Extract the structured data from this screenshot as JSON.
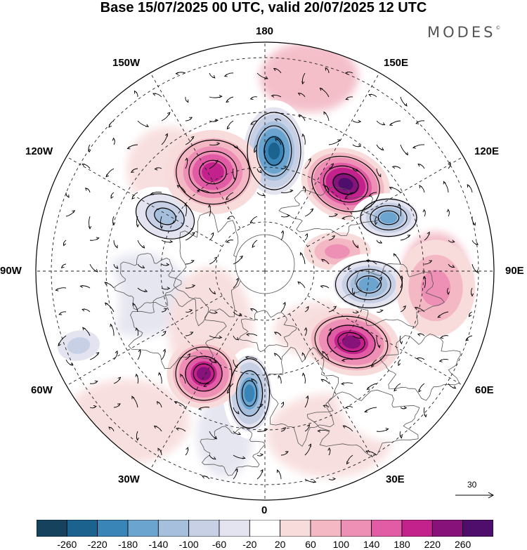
{
  "title": "Base 15/07/2025 00 UTC, valid 20/07/2025 12 UTC",
  "brand": "MODES",
  "brand_mark": "©",
  "longitude_labels": [
    {
      "id": "lon-180",
      "text": "180"
    },
    {
      "id": "lon-150e",
      "text": "150E"
    },
    {
      "id": "lon-120e",
      "text": "120E"
    },
    {
      "id": "lon-90e",
      "text": "90E"
    },
    {
      "id": "lon-60e",
      "text": "60E"
    },
    {
      "id": "lon-30e",
      "text": "30E"
    },
    {
      "id": "lon-0",
      "text": "0"
    },
    {
      "id": "lon-30w",
      "text": "30W"
    },
    {
      "id": "lon-60w",
      "text": "60W"
    },
    {
      "id": "lon-90w",
      "text": "90W"
    },
    {
      "id": "lon-120w",
      "text": "120W"
    },
    {
      "id": "lon-150w",
      "text": "150W"
    }
  ],
  "vector_scale": "30",
  "colorbar": {
    "ticks": [
      "-260",
      "-220",
      "-180",
      "-140",
      "-100",
      "-60",
      "-20",
      "20",
      "60",
      "100",
      "140",
      "180",
      "220",
      "260"
    ],
    "colors": [
      "#16425e",
      "#1c628f",
      "#3a85b8",
      "#6ba4cf",
      "#a6bfdc",
      "#c8d0e6",
      "#e4e4f0",
      "#ffffff",
      "#f8dcdc",
      "#f3b8c4",
      "#ee8fb5",
      "#e25ca5",
      "#c3218b",
      "#86127a",
      "#4f0e6b"
    ]
  },
  "anomaly_centers": [
    {
      "sign": "negative",
      "level": -220,
      "near": "180"
    },
    {
      "sign": "positive",
      "level": 220,
      "near": "150E"
    },
    {
      "sign": "negative",
      "level": -140,
      "near": "120E"
    },
    {
      "sign": "positive",
      "level": 60,
      "near": "90E"
    },
    {
      "sign": "negative",
      "level": -140,
      "near": "90E"
    },
    {
      "sign": "positive",
      "level": 180,
      "near": "60E"
    },
    {
      "sign": "negative",
      "level": -180,
      "near": "0"
    },
    {
      "sign": "positive",
      "level": 180,
      "near": "30W"
    },
    {
      "sign": "negative",
      "level": -100,
      "near": "120W"
    },
    {
      "sign": "positive",
      "level": 140,
      "near": "150W"
    },
    {
      "sign": "positive",
      "level": 60,
      "near": "90E"
    }
  ]
}
